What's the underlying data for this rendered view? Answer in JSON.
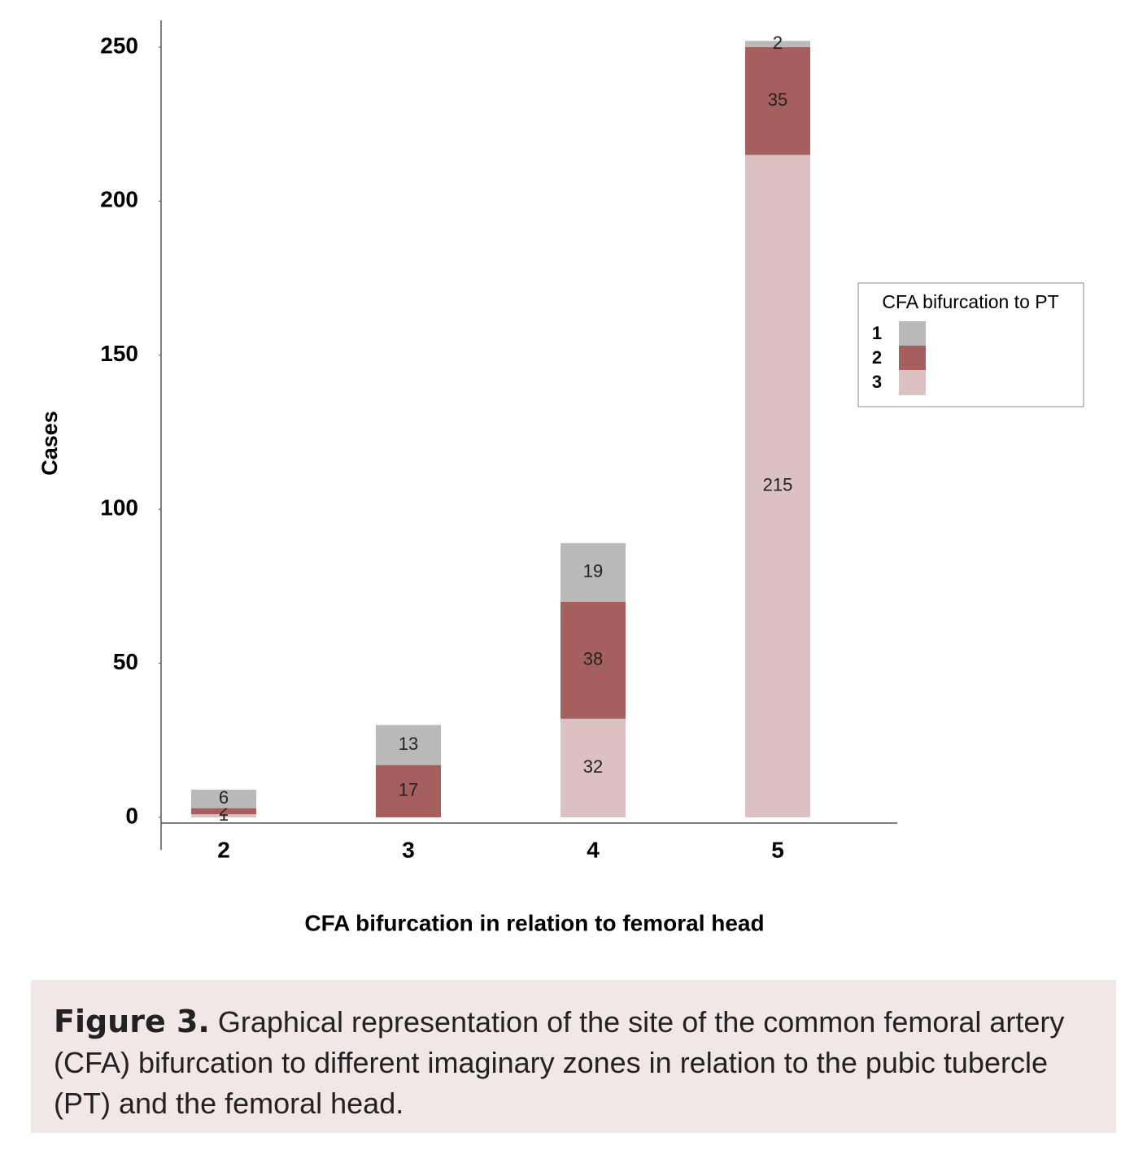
{
  "chart_data": {
    "type": "stacked-bar",
    "y_label": "Cases",
    "x_label": "CFA bifurcation in relation to femoral head",
    "categories": [
      "2",
      "3",
      "4",
      "5"
    ],
    "series": [
      {
        "name": "1",
        "color": "#b9b9b9",
        "values": [
          6,
          13,
          19,
          2
        ]
      },
      {
        "name": "2",
        "color": "#a55f5f",
        "values": [
          2,
          17,
          38,
          35
        ]
      },
      {
        "name": "3",
        "color": "#dcc1c3",
        "values": [
          1,
          null,
          32,
          215
        ]
      }
    ],
    "ylim": [
      0,
      260
    ],
    "yticks": [
      0,
      50,
      100,
      150,
      200,
      250
    ],
    "grid": false,
    "legend_title": "CFA bifurcation to PT",
    "legend_position": "right"
  },
  "caption": {
    "label": "Figure 3.",
    "text": "Graphical representation of the site of the common femoral artery (CFA) bifurcation to different imaginary zones in relation to the pubic tubercle (PT) and the femoral head."
  }
}
